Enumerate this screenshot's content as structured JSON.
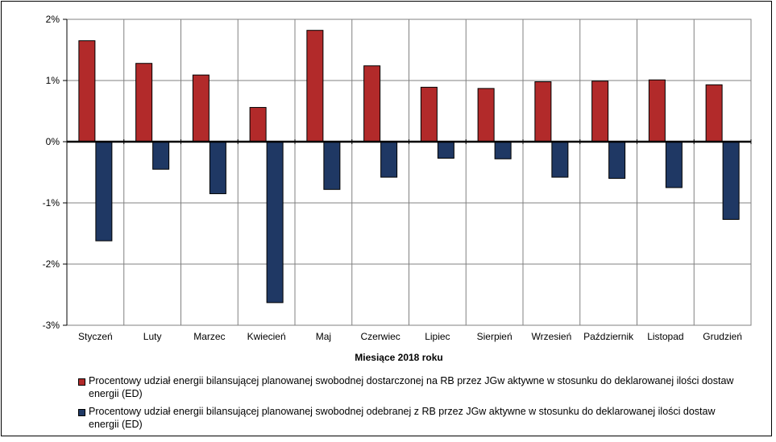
{
  "chart_data": {
    "type": "bar",
    "categories": [
      "Styczeń",
      "Luty",
      "Marzec",
      "Kwiecień",
      "Maj",
      "Czerwiec",
      "Lipiec",
      "Sierpień",
      "Wrzesień",
      "Październik",
      "Listopad",
      "Grudzień"
    ],
    "series": [
      {
        "name": "Procentowy udział energii bilansującej planowanej swobodnej dostarczonej na RB przez JGw aktywne w stosunku do deklarowanej ilości dostaw energii (ED)",
        "color": "#b22a2a",
        "values": [
          1.65,
          1.28,
          1.09,
          0.56,
          1.82,
          1.24,
          0.89,
          0.87,
          0.98,
          0.99,
          1.01,
          0.93
        ]
      },
      {
        "name": "Procentowy udział energii bilansującej planowanej swobodnej odebranej z RB przez JGw aktywne w stosunku do deklarowanej ilości dostaw energii (ED)",
        "color": "#1f3864",
        "values": [
          -1.62,
          -0.45,
          -0.85,
          -2.63,
          -0.78,
          -0.58,
          -0.27,
          -0.28,
          -0.58,
          -0.6,
          -0.75,
          -1.27
        ]
      }
    ],
    "yticks": [
      "2%",
      "1%",
      "0%",
      "-1%",
      "-2%",
      "-3%"
    ],
    "ylim": [
      -3,
      2
    ],
    "xlabel": "Miesiące 2018  roku",
    "ylabel": "",
    "grid": true,
    "legend_position": "bottom"
  }
}
